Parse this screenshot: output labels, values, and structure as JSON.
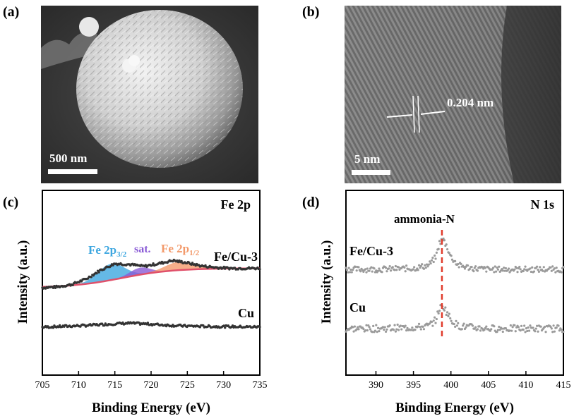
{
  "panels": {
    "a": {
      "label": "(a)",
      "scalebar": "500 nm"
    },
    "b": {
      "label": "(b)",
      "scalebar": "5 nm",
      "annotation": "0.204 nm"
    },
    "c": {
      "label": "(c)",
      "title": "Fe 2p",
      "series_fecu_label": "Fe/Cu-3",
      "series_cu_label": "Cu",
      "peak_labels": {
        "fe2p32_main": "Fe 2p",
        "fe2p32_sub": "3/2",
        "sat": "sat.",
        "fe2p12_main": "Fe 2p",
        "fe2p12_sub": "1/2"
      },
      "peak_colors": {
        "fe2p32": "#3ea7e0",
        "sat": "#8a5bd6",
        "fe2p12": "#f39a6b",
        "baseline": "#e0506a"
      }
    },
    "d": {
      "label": "(d)",
      "title": "N 1s",
      "marker_label": "ammonia-N",
      "series_fecu_label": "Fe/Cu-3",
      "series_cu_label": "Cu",
      "marker_color": "#e03c2c"
    }
  },
  "chart_data": [
    {
      "type": "scatter",
      "panel": "c",
      "title": "Fe 2p",
      "xlabel": "Binding Energy (eV)",
      "ylabel": "Intensity (a.u.)",
      "xlim": [
        705,
        735
      ],
      "x_ticks": [
        "705",
        "710",
        "715",
        "720",
        "725",
        "730",
        "735"
      ],
      "series": [
        {
          "name": "Fe/Cu-3",
          "x": [
            705,
            707,
            709,
            711,
            713,
            715,
            717,
            719,
            721,
            723,
            725,
            727,
            729,
            731,
            733,
            735
          ],
          "y": [
            1.0,
            1.02,
            1.08,
            1.22,
            1.45,
            1.62,
            1.6,
            1.55,
            1.62,
            1.7,
            1.64,
            1.56,
            1.52,
            1.5,
            1.5,
            1.5
          ]
        },
        {
          "name": "Cu",
          "x": [
            705,
            707,
            709,
            711,
            713,
            715,
            717,
            719,
            721,
            723,
            725,
            727,
            729,
            731,
            733,
            735
          ],
          "y": [
            0.05,
            0.07,
            0.09,
            0.11,
            0.14,
            0.17,
            0.19,
            0.17,
            0.14,
            0.11,
            0.09,
            0.08,
            0.07,
            0.07,
            0.06,
            0.06
          ]
        }
      ],
      "annotations": [
        "Fe 2p3/2",
        "sat.",
        "Fe 2p1/2",
        "Fe/Cu-3",
        "Cu"
      ],
      "grid": false
    },
    {
      "type": "scatter",
      "panel": "d",
      "title": "N 1s",
      "xlabel": "Binding Energy (eV)",
      "ylabel": "Intensity (a.u.)",
      "xlim": [
        386,
        415
      ],
      "x_ticks": [
        "390",
        "395",
        "400",
        "405",
        "410",
        "415"
      ],
      "series": [
        {
          "name": "Fe/Cu-3",
          "x": [
            386,
            390,
            395,
            397,
            398,
            398.5,
            399,
            399.5,
            400,
            401,
            403,
            405,
            410,
            415
          ],
          "y": [
            1.0,
            1.0,
            1.02,
            1.08,
            1.25,
            1.55,
            1.6,
            1.45,
            1.25,
            1.08,
            1.02,
            1.0,
            1.0,
            1.0
          ]
        },
        {
          "name": "Cu",
          "x": [
            386,
            390,
            395,
            397,
            398,
            398.5,
            399,
            399.5,
            400,
            401,
            403,
            405,
            410,
            415
          ],
          "y": [
            0.0,
            0.0,
            0.02,
            0.05,
            0.18,
            0.42,
            0.45,
            0.32,
            0.18,
            0.05,
            0.02,
            0.0,
            0.0,
            0.0
          ]
        }
      ],
      "reference_line": {
        "x": 398.8,
        "label": "ammonia-N"
      },
      "grid": false
    }
  ]
}
